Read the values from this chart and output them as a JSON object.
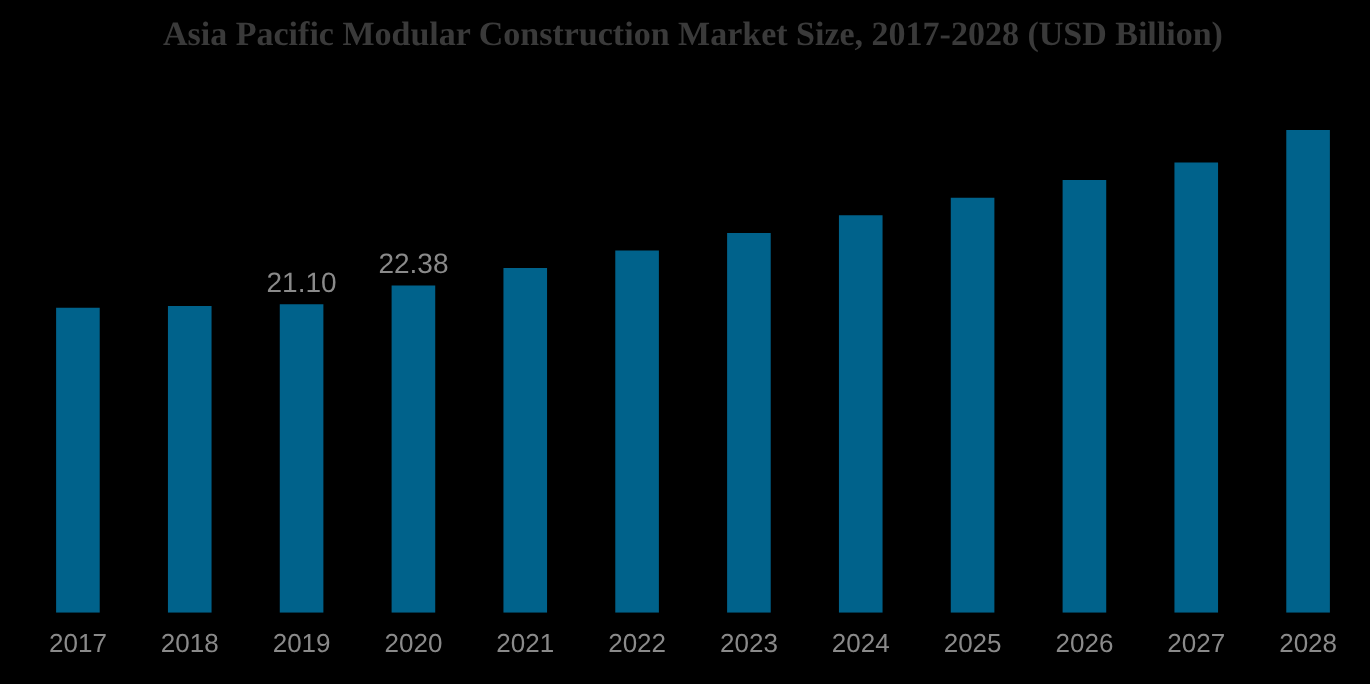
{
  "chart_data": {
    "type": "bar",
    "title": "Asia Pacific Modular Construction Market Size, 2017-2028 (USD Billion)",
    "categories": [
      "2017",
      "2018",
      "2019",
      "2020",
      "2021",
      "2022",
      "2023",
      "2024",
      "2025",
      "2026",
      "2027",
      "2028"
    ],
    "values": [
      20.85,
      20.98,
      21.1,
      22.38,
      23.57,
      24.77,
      25.97,
      27.18,
      28.38,
      29.58,
      30.78,
      33.0
    ],
    "value_labels": [
      null,
      null,
      "21.10",
      "22.38",
      null,
      null,
      null,
      null,
      null,
      null,
      null,
      null
    ],
    "color": "#00628b"
  }
}
